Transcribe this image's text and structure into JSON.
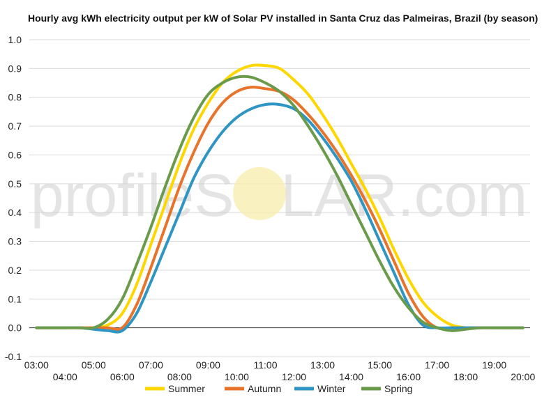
{
  "chart_data": {
    "type": "line",
    "title": "Hourly avg kWh electricity output per kW of Solar PV installed in Santa Cruz das Palmeiras, Brazil (by season)",
    "xlabel": "",
    "ylabel": "",
    "x": [
      3,
      3.5,
      4,
      4.5,
      5,
      5.5,
      6,
      6.5,
      7,
      7.5,
      8,
      8.5,
      9,
      9.5,
      10,
      10.5,
      11,
      11.5,
      12,
      12.5,
      13,
      13.5,
      14,
      14.5,
      15,
      15.5,
      16,
      16.5,
      17,
      17.5,
      18,
      18.5,
      19,
      19.5,
      20
    ],
    "ylim": [
      -0.1,
      1.0
    ],
    "yticks": [
      "-0.1",
      "0.0",
      "0.1",
      "0.2",
      "0.3",
      "0.4",
      "0.5",
      "0.6",
      "0.7",
      "0.8",
      "0.9",
      "1.0"
    ],
    "xticks_upper": [
      "03:00",
      "05:00",
      "07:00",
      "09:00",
      "11:00",
      "13:00",
      "15:00",
      "17:00",
      "19:00"
    ],
    "xticks_lower": [
      "04:00",
      "06:00",
      "08:00",
      "10:00",
      "12:00",
      "14:00",
      "16:00",
      "18:00",
      "20:00"
    ],
    "grid": true,
    "legend_position": "bottom",
    "series": [
      {
        "name": "Summer",
        "color": "#FFD700",
        "values": [
          0,
          0,
          0,
          0,
          0,
          0.01,
          0.05,
          0.15,
          0.29,
          0.43,
          0.57,
          0.69,
          0.78,
          0.85,
          0.89,
          0.91,
          0.91,
          0.9,
          0.86,
          0.81,
          0.74,
          0.66,
          0.57,
          0.48,
          0.38,
          0.27,
          0.17,
          0.09,
          0.04,
          0.01,
          0,
          0,
          0,
          0,
          0
        ]
      },
      {
        "name": "Autumn",
        "color": "#E8732A",
        "values": [
          0,
          0,
          0,
          0,
          0,
          0,
          0,
          0.08,
          0.21,
          0.35,
          0.49,
          0.61,
          0.71,
          0.78,
          0.82,
          0.835,
          0.83,
          0.82,
          0.79,
          0.74,
          0.68,
          0.61,
          0.53,
          0.44,
          0.34,
          0.23,
          0.12,
          0.04,
          0,
          0,
          0,
          0,
          0,
          0,
          0
        ]
      },
      {
        "name": "Winter",
        "color": "#2E95C4",
        "values": [
          0,
          0,
          0,
          0,
          -0.005,
          -0.01,
          -0.01,
          0.05,
          0.16,
          0.28,
          0.4,
          0.52,
          0.61,
          0.68,
          0.73,
          0.76,
          0.775,
          0.775,
          0.76,
          0.72,
          0.66,
          0.59,
          0.51,
          0.41,
          0.3,
          0.19,
          0.08,
          0.01,
          0,
          0,
          0,
          0,
          0,
          0,
          0
        ]
      },
      {
        "name": "Spring",
        "color": "#6A9B4B",
        "values": [
          0,
          0,
          0,
          0,
          0,
          0.03,
          0.1,
          0.22,
          0.35,
          0.49,
          0.62,
          0.73,
          0.81,
          0.85,
          0.87,
          0.87,
          0.85,
          0.82,
          0.77,
          0.7,
          0.62,
          0.53,
          0.43,
          0.33,
          0.23,
          0.14,
          0.07,
          0.02,
          0,
          -0.01,
          -0.005,
          0,
          0,
          0,
          0
        ]
      }
    ]
  },
  "watermark": {
    "brand_prefix": "profile",
    "brand_suffix": "S",
    "brand_sun_letter": "O",
    "brand_rest": "LAR.com"
  }
}
